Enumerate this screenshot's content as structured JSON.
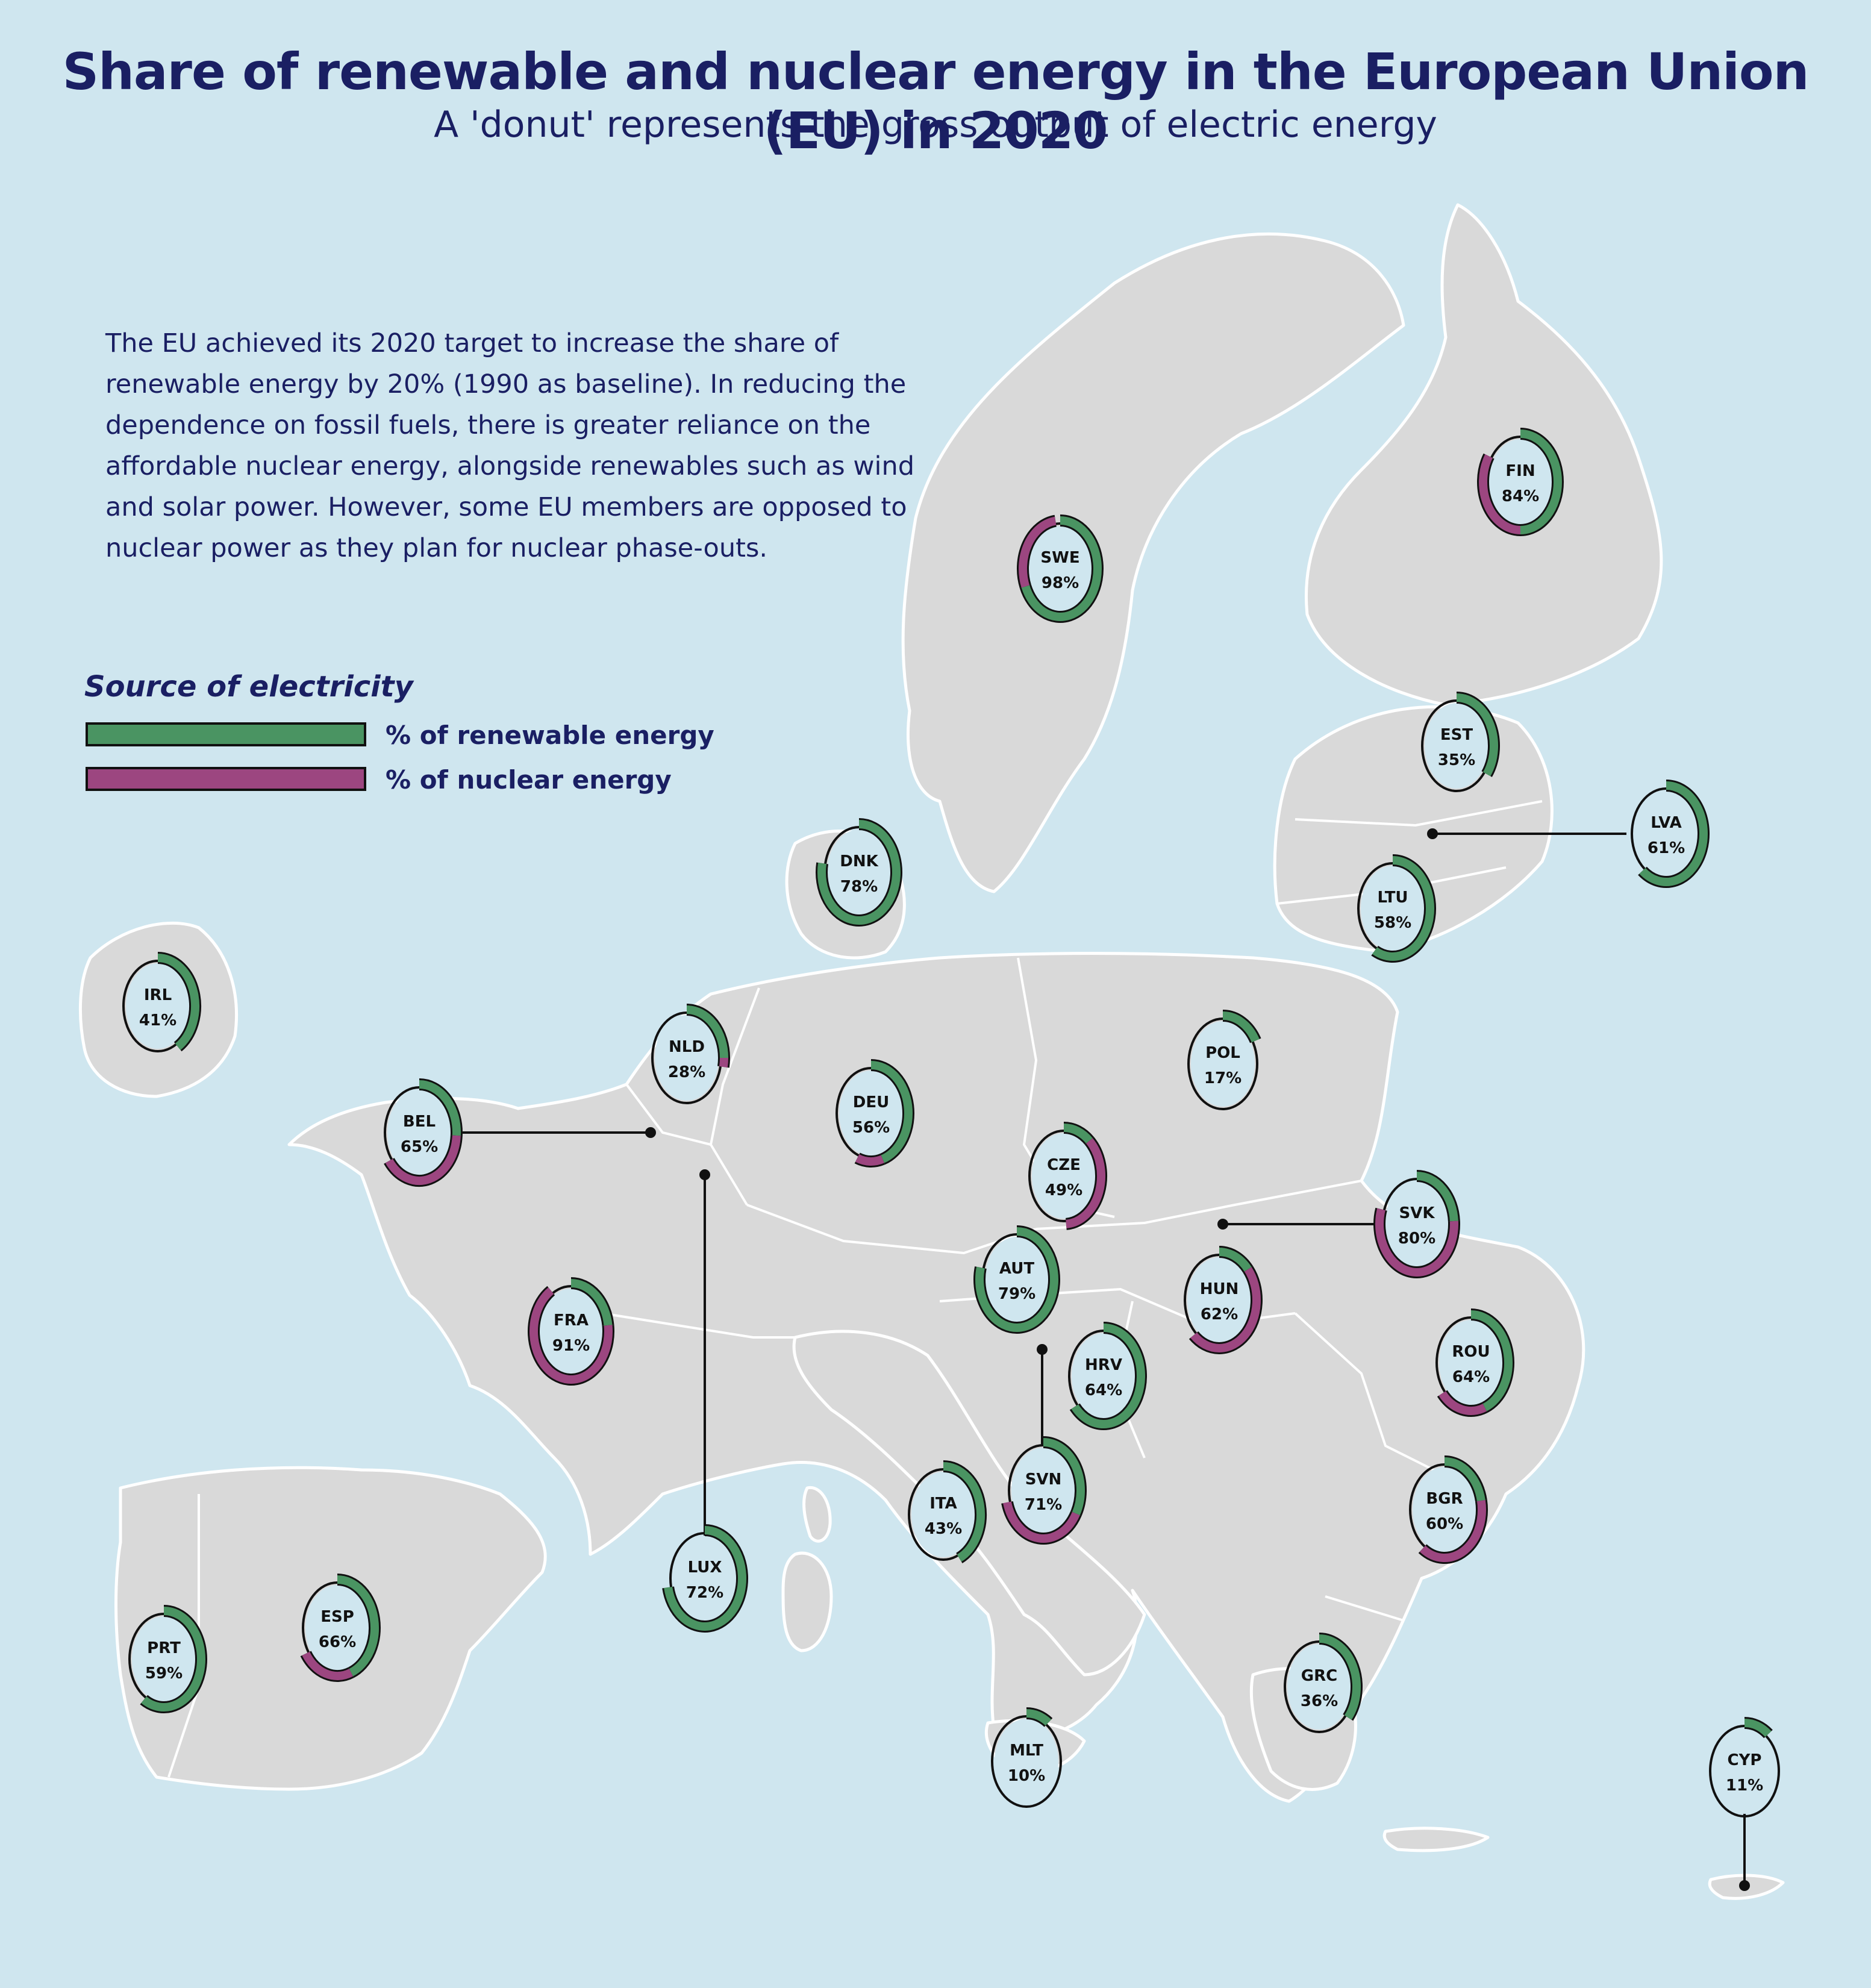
{
  "title": "Share of renewable and nuclear energy in the European Union (EU) in 2020",
  "subtitle": "A 'donut' represents the gross output of electric energy",
  "intro_lines": [
    "The EU achieved its 2020 target to increase the share of",
    "renewable energy by 20% (1990 as baseline). In reducing the",
    "dependence on fossil fuels, there is greater reliance on the",
    "affordable nuclear energy, alongside renewables such as wind",
    "and solar power. However, some EU members are opposed to",
    "nuclear power as they plan for nuclear phase-outs."
  ],
  "legend": {
    "title": "Source of electricity",
    "items": [
      {
        "label": "% of renewable energy",
        "color": "#4a9462"
      },
      {
        "label": "% of nuclear energy",
        "color": "#9c4680"
      }
    ]
  },
  "colors": {
    "sea": "#cfe6ef",
    "land": "#d9d9d9",
    "border": "#ffffff",
    "renewable": "#4a9462",
    "nuclear": "#9c4680",
    "text": "#1a1f63"
  },
  "countries": [
    {
      "code": "FIN",
      "label": "84%",
      "renewable": 0.5,
      "nuclear": 0.34
    },
    {
      "code": "SWE",
      "label": "98%",
      "renewable": 0.69,
      "nuclear": 0.29
    },
    {
      "code": "EST",
      "label": "35%",
      "renewable": 0.35,
      "nuclear": 0.0
    },
    {
      "code": "LVA",
      "label": "61%",
      "renewable": 0.61,
      "nuclear": 0.0
    },
    {
      "code": "LTU",
      "label": "58%",
      "renewable": 0.58,
      "nuclear": 0.0
    },
    {
      "code": "DNK",
      "label": "78%",
      "renewable": 0.78,
      "nuclear": 0.0
    },
    {
      "code": "IRL",
      "label": "41%",
      "renewable": 0.41,
      "nuclear": 0.0
    },
    {
      "code": "NLD",
      "label": "28%",
      "renewable": 0.25,
      "nuclear": 0.03
    },
    {
      "code": "POL",
      "label": "17%",
      "renewable": 0.17,
      "nuclear": 0.0
    },
    {
      "code": "DEU",
      "label": "56%",
      "renewable": 0.45,
      "nuclear": 0.11
    },
    {
      "code": "BEL",
      "label": "65%",
      "renewable": 0.26,
      "nuclear": 0.39
    },
    {
      "code": "CZE",
      "label": "49%",
      "renewable": 0.12,
      "nuclear": 0.37
    },
    {
      "code": "SVK",
      "label": "80%",
      "renewable": 0.24,
      "nuclear": 0.56
    },
    {
      "code": "AUT",
      "label": "79%",
      "renewable": 0.79,
      "nuclear": 0.0
    },
    {
      "code": "HUN",
      "label": "62%",
      "renewable": 0.14,
      "nuclear": 0.48
    },
    {
      "code": "FRA",
      "label": "91%",
      "renewable": 0.23,
      "nuclear": 0.68
    },
    {
      "code": "ROU",
      "label": "64%",
      "renewable": 0.44,
      "nuclear": 0.2
    },
    {
      "code": "HRV",
      "label": "64%",
      "renewable": 0.64,
      "nuclear": 0.0
    },
    {
      "code": "SVN",
      "label": "71%",
      "renewable": 0.33,
      "nuclear": 0.38
    },
    {
      "code": "ITA",
      "label": "43%",
      "renewable": 0.43,
      "nuclear": 0.0
    },
    {
      "code": "BGR",
      "label": "60%",
      "renewable": 0.22,
      "nuclear": 0.38
    },
    {
      "code": "LUX",
      "label": "72%",
      "renewable": 0.72,
      "nuclear": 0.0
    },
    {
      "code": "ESP",
      "label": "66%",
      "renewable": 0.44,
      "nuclear": 0.22
    },
    {
      "code": "PRT",
      "label": "59%",
      "renewable": 0.59,
      "nuclear": 0.0
    },
    {
      "code": "GRC",
      "label": "36%",
      "renewable": 0.36,
      "nuclear": 0.0
    },
    {
      "code": "MLT",
      "label": "10%",
      "renewable": 0.1,
      "nuclear": 0.0
    },
    {
      "code": "CYP",
      "label": "11%",
      "renewable": 0.11,
      "nuclear": 0.0
    }
  ]
}
